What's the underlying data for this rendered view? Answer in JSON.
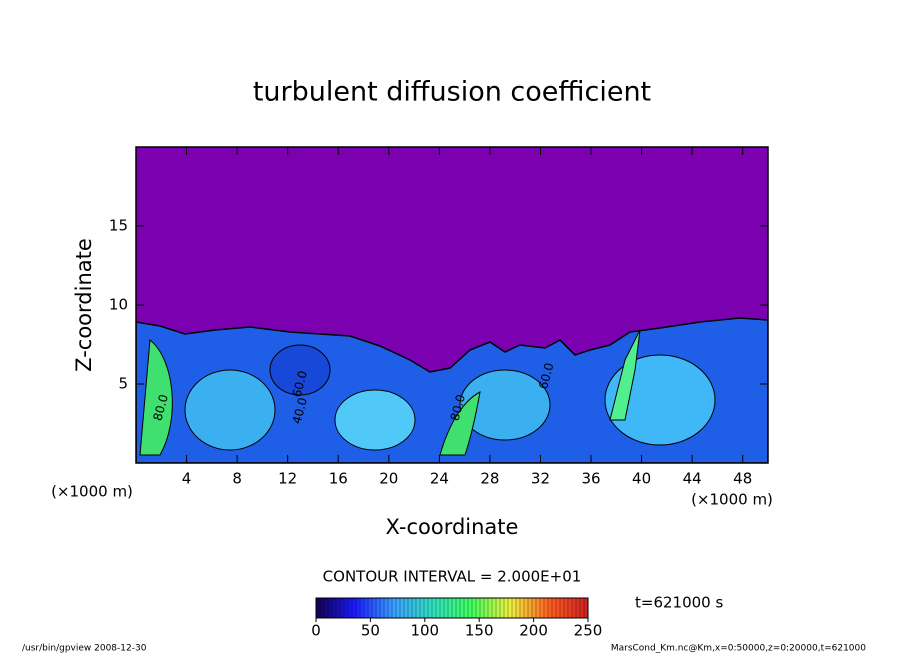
{
  "chart_data": {
    "type": "contour",
    "title": "turbulent diffusion coefficient",
    "x_label": "X-coordinate",
    "y_label": "Z-coordinate",
    "x_unit": "(×1000 m)",
    "y_unit": "(×1000 m)",
    "xlim": [
      0,
      50
    ],
    "ylim": [
      0,
      20
    ],
    "xticks": [
      4,
      8,
      12,
      16,
      20,
      24,
      28,
      32,
      36,
      40,
      44,
      48
    ],
    "yticks": [
      5,
      10,
      15
    ],
    "contour_labels": [
      {
        "x": 2,
        "y": 3.5,
        "label": "80.0"
      },
      {
        "x": 13,
        "y": 3.3,
        "label": "40.0"
      },
      {
        "x": 13,
        "y": 5.0,
        "label": "60.0"
      },
      {
        "x": 25.5,
        "y": 3.5,
        "label": "80.0"
      },
      {
        "x": 32.5,
        "y": 5.5,
        "label": "60.0"
      }
    ],
    "contour_interval": "CONTOUR INTERVAL = 2.000E+01",
    "time_label": "t=621000 s",
    "colorbar": {
      "lim": [
        0,
        250
      ],
      "ticks": [
        0,
        50,
        100,
        150,
        200,
        250
      ],
      "colors": [
        "#140050",
        "#1a1aff",
        "#3aa0ff",
        "#30e0c0",
        "#40ff60",
        "#f0f040",
        "#ff6020",
        "#d02020"
      ]
    },
    "footer_left": "/usr/bin/gpview   2008-12-30",
    "footer_right": "MarsCond_Km.nc@Km,x=0:50000,z=0:20000,t=621000"
  }
}
